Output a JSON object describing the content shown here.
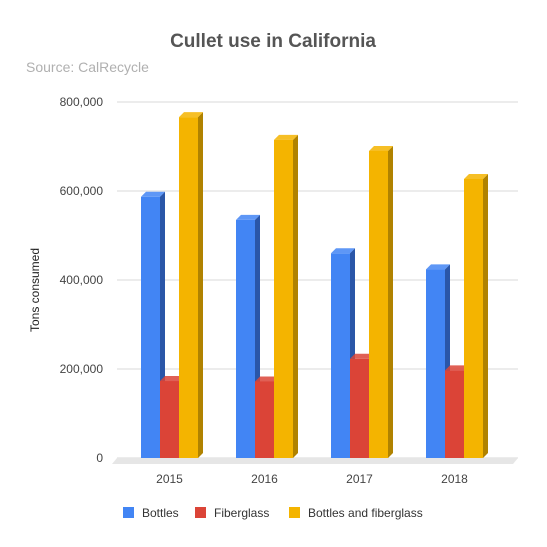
{
  "chart_data": {
    "type": "bar",
    "title": "Cullet use in California",
    "subtitle": "Source: CalRecycle",
    "xlabel": "",
    "ylabel": "Tons consumed",
    "categories": [
      "2015",
      "2016",
      "2017",
      "2018"
    ],
    "series": [
      {
        "name": "Bottles",
        "values": [
          587000,
          535000,
          460000,
          424000
        ],
        "color": "#4285f4",
        "side_color": "#2a56a8"
      },
      {
        "name": "Fiberglass",
        "values": [
          173000,
          172000,
          223000,
          197000
        ],
        "color": "#db4437",
        "side_color": "#9a2d23"
      },
      {
        "name": "Bottles and fiberglass",
        "values": [
          766000,
          715000,
          690000,
          627000
        ],
        "color": "#f4b400",
        "side_color": "#b08200"
      }
    ],
    "ylim": [
      0,
      800000
    ],
    "yticks": [
      {
        "value": 0,
        "label": "0"
      },
      {
        "value": 200000,
        "label": "200,000"
      },
      {
        "value": 400000,
        "label": "400,000"
      },
      {
        "value": 600000,
        "label": "600,000"
      },
      {
        "value": 800000,
        "label": "800,000"
      }
    ],
    "grid": true,
    "legend_position": "bottom",
    "style": "3d"
  }
}
